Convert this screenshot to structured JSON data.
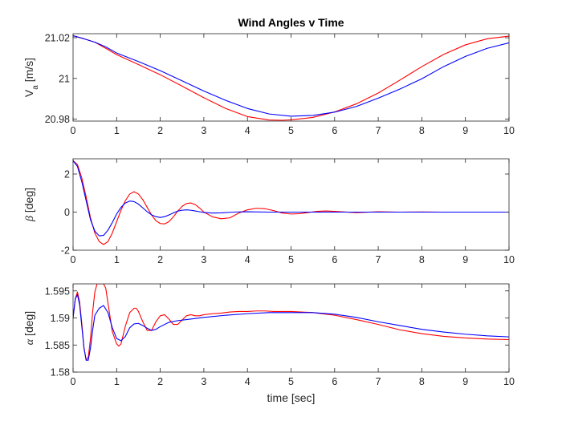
{
  "chart_data": [
    {
      "type": "line",
      "title": "Wind Angles v Time",
      "ylabel_main": "V",
      "ylabel_sub": "a",
      "ylabel_rest": " [m/s]",
      "xlabel": "",
      "xlim": [
        0,
        10
      ],
      "ylim": [
        20.979,
        21.022
      ],
      "xticks": [
        0,
        1,
        2,
        3,
        4,
        5,
        6,
        7,
        8,
        9,
        10
      ],
      "yticks": [
        20.98,
        21,
        21.02
      ],
      "ytick_labels": [
        "20.98",
        "21",
        "21.02"
      ],
      "grid": false,
      "series": [
        {
          "color": "#ff0000",
          "x": [
            0,
            0.25,
            0.5,
            0.75,
            1,
            1.5,
            2,
            2.5,
            3,
            3.5,
            4,
            4.5,
            4.8,
            5,
            5.5,
            6,
            6.5,
            7,
            7.5,
            8,
            8.5,
            9,
            9.5,
            10
          ],
          "y": [
            21.021,
            21.0195,
            21.0178,
            21.0148,
            21.0117,
            21.0068,
            21.0018,
            20.9962,
            20.9905,
            20.9852,
            20.9812,
            20.9795,
            20.9794,
            20.9796,
            20.9808,
            20.9835,
            20.9875,
            20.9928,
            20.9992,
            21.0058,
            21.0118,
            21.0165,
            21.0195,
            21.0208
          ]
        },
        {
          "color": "#0000ff",
          "x": [
            0,
            0.25,
            0.5,
            0.75,
            1,
            1.5,
            2,
            2.5,
            3,
            3.5,
            4,
            4.5,
            5,
            5.5,
            6,
            6.5,
            7,
            7.5,
            8,
            8.5,
            9,
            9.5,
            10
          ],
          "y": [
            21.021,
            21.0195,
            21.0178,
            21.0155,
            21.0125,
            21.0083,
            21.0038,
            20.9988,
            20.9938,
            20.9892,
            20.9852,
            20.9825,
            20.9814,
            20.9818,
            20.9834,
            20.9862,
            20.9903,
            20.9948,
            20.9998,
            21.0058,
            21.0108,
            21.0148,
            21.0175
          ]
        }
      ]
    },
    {
      "type": "line",
      "ylabel_main": "β",
      "ylabel_sub": "",
      "ylabel_rest": " [deg]",
      "xlabel": "",
      "xlim": [
        0,
        10
      ],
      "ylim": [
        -2,
        2.8
      ],
      "xticks": [
        0,
        1,
        2,
        3,
        4,
        5,
        6,
        7,
        8,
        9,
        10
      ],
      "yticks": [
        -2,
        0,
        2
      ],
      "ytick_labels": [
        "-2",
        "0",
        "2"
      ],
      "grid": false,
      "series": [
        {
          "color": "#ff0000",
          "x": [
            0,
            0.1,
            0.2,
            0.3,
            0.4,
            0.5,
            0.6,
            0.7,
            0.8,
            0.9,
            1.0,
            1.1,
            1.2,
            1.3,
            1.4,
            1.5,
            1.6,
            1.7,
            1.8,
            1.9,
            2.0,
            2.1,
            2.2,
            2.3,
            2.4,
            2.5,
            2.6,
            2.7,
            2.8,
            2.9,
            3.0,
            3.2,
            3.4,
            3.6,
            3.8,
            4.0,
            4.2,
            4.4,
            4.6,
            4.8,
            5.0,
            5.2,
            5.4,
            5.6,
            5.8,
            6.0,
            6.5,
            7.0,
            7.5,
            8.0,
            8.5,
            9.0,
            9.5,
            10
          ],
          "y": [
            2.7,
            2.5,
            1.8,
            0.8,
            -0.3,
            -1.1,
            -1.55,
            -1.7,
            -1.55,
            -1.1,
            -0.5,
            0.1,
            0.6,
            0.95,
            1.07,
            0.95,
            0.65,
            0.25,
            -0.15,
            -0.45,
            -0.6,
            -0.62,
            -0.5,
            -0.25,
            0.05,
            0.3,
            0.45,
            0.48,
            0.4,
            0.22,
            0.0,
            -0.25,
            -0.35,
            -0.3,
            -0.05,
            0.12,
            0.2,
            0.18,
            0.08,
            -0.05,
            -0.1,
            -0.08,
            -0.02,
            0.04,
            0.06,
            0.04,
            -0.03,
            0.02,
            0.0,
            0.01,
            0.0,
            0.0,
            0.0,
            0.0
          ]
        },
        {
          "color": "#0000ff",
          "x": [
            0,
            0.1,
            0.2,
            0.3,
            0.4,
            0.5,
            0.6,
            0.7,
            0.8,
            0.9,
            1.0,
            1.1,
            1.2,
            1.3,
            1.4,
            1.5,
            1.6,
            1.7,
            1.8,
            1.9,
            2.0,
            2.1,
            2.2,
            2.3,
            2.4,
            2.5,
            2.6,
            2.7,
            2.8,
            2.9,
            3.0,
            3.2,
            3.4,
            3.6,
            3.8,
            4.0,
            4.5,
            5.0,
            6.0,
            7.0,
            8.0,
            9.0,
            10
          ],
          "y": [
            2.7,
            2.4,
            1.6,
            0.6,
            -0.4,
            -1.0,
            -1.25,
            -1.22,
            -0.95,
            -0.55,
            -0.1,
            0.25,
            0.48,
            0.58,
            0.55,
            0.42,
            0.22,
            0.02,
            -0.14,
            -0.24,
            -0.28,
            -0.24,
            -0.15,
            -0.04,
            0.05,
            0.1,
            0.12,
            0.1,
            0.06,
            0.02,
            -0.02,
            -0.05,
            -0.04,
            -0.01,
            0.01,
            0.02,
            0.0,
            0.0,
            0.0,
            0.0,
            0.0,
            0.0,
            0.0
          ]
        }
      ]
    },
    {
      "type": "line",
      "ylabel_main": "α",
      "ylabel_sub": "",
      "ylabel_rest": " [deg]",
      "xlabel": "time [sec]",
      "xlim": [
        0,
        10
      ],
      "ylim": [
        1.58,
        1.5963
      ],
      "xticks": [
        0,
        1,
        2,
        3,
        4,
        5,
        6,
        7,
        8,
        9,
        10
      ],
      "yticks": [
        1.58,
        1.585,
        1.59,
        1.595
      ],
      "ytick_labels": [
        "1.58",
        "1.585",
        "1.59",
        "1.595"
      ],
      "grid": false,
      "series": [
        {
          "color": "#ff0000",
          "x": [
            0,
            0.05,
            0.1,
            0.15,
            0.2,
            0.25,
            0.3,
            0.35,
            0.4,
            0.45,
            0.5,
            0.55,
            0.6,
            0.65,
            0.7,
            0.75,
            0.8,
            0.9,
            1.0,
            1.05,
            1.1,
            1.2,
            1.3,
            1.4,
            1.45,
            1.5,
            1.6,
            1.7,
            1.8,
            1.9,
            2.0,
            2.1,
            2.2,
            2.3,
            2.4,
            2.5,
            2.6,
            2.7,
            2.8,
            2.9,
            3.0,
            3.2,
            3.4,
            3.6,
            3.8,
            4.0,
            4.2,
            4.4,
            4.6,
            4.8,
            5.0,
            5.5,
            6.0,
            6.5,
            7.0,
            7.5,
            8.0,
            8.5,
            9.0,
            9.5,
            10
          ],
          "y": [
            1.59,
            1.5935,
            1.5948,
            1.593,
            1.589,
            1.5845,
            1.5822,
            1.5828,
            1.5862,
            1.5912,
            1.5948,
            1.5963,
            1.5963,
            1.5963,
            1.5963,
            1.5955,
            1.5928,
            1.5875,
            1.5852,
            1.5848,
            1.5852,
            1.5885,
            1.591,
            1.5918,
            1.5918,
            1.5912,
            1.5893,
            1.5877,
            1.5877,
            1.5893,
            1.5904,
            1.5906,
            1.5898,
            1.5888,
            1.5888,
            1.5896,
            1.5904,
            1.5906,
            1.5904,
            1.5904,
            1.5906,
            1.5908,
            1.5909,
            1.5911,
            1.5912,
            1.5912,
            1.5913,
            1.5913,
            1.5912,
            1.5912,
            1.5912,
            1.591,
            1.5905,
            1.5897,
            1.5888,
            1.5878,
            1.5871,
            1.5866,
            1.5863,
            1.5861,
            1.586
          ]
        },
        {
          "color": "#0000ff",
          "x": [
            0,
            0.05,
            0.1,
            0.15,
            0.2,
            0.25,
            0.3,
            0.35,
            0.4,
            0.45,
            0.5,
            0.6,
            0.7,
            0.8,
            0.9,
            1.0,
            1.1,
            1.2,
            1.3,
            1.4,
            1.5,
            1.6,
            1.7,
            1.8,
            1.9,
            2.0,
            2.2,
            2.4,
            2.6,
            2.8,
            3.0,
            3.5,
            4.0,
            4.5,
            5.0,
            5.5,
            6.0,
            6.5,
            7.0,
            7.5,
            8.0,
            8.5,
            9.0,
            9.5,
            10
          ],
          "y": [
            1.59,
            1.5935,
            1.5943,
            1.5925,
            1.5885,
            1.5845,
            1.5822,
            1.5822,
            1.5845,
            1.5878,
            1.5905,
            1.5918,
            1.5923,
            1.591,
            1.5882,
            1.5862,
            1.5858,
            1.5866,
            1.5882,
            1.5889,
            1.589,
            1.5886,
            1.5881,
            1.5877,
            1.5879,
            1.5884,
            1.5892,
            1.5895,
            1.5897,
            1.5899,
            1.5901,
            1.5905,
            1.5908,
            1.591,
            1.591,
            1.591,
            1.5907,
            1.5901,
            1.5893,
            1.5886,
            1.5879,
            1.5874,
            1.587,
            1.5867,
            1.5865
          ]
        }
      ]
    }
  ]
}
